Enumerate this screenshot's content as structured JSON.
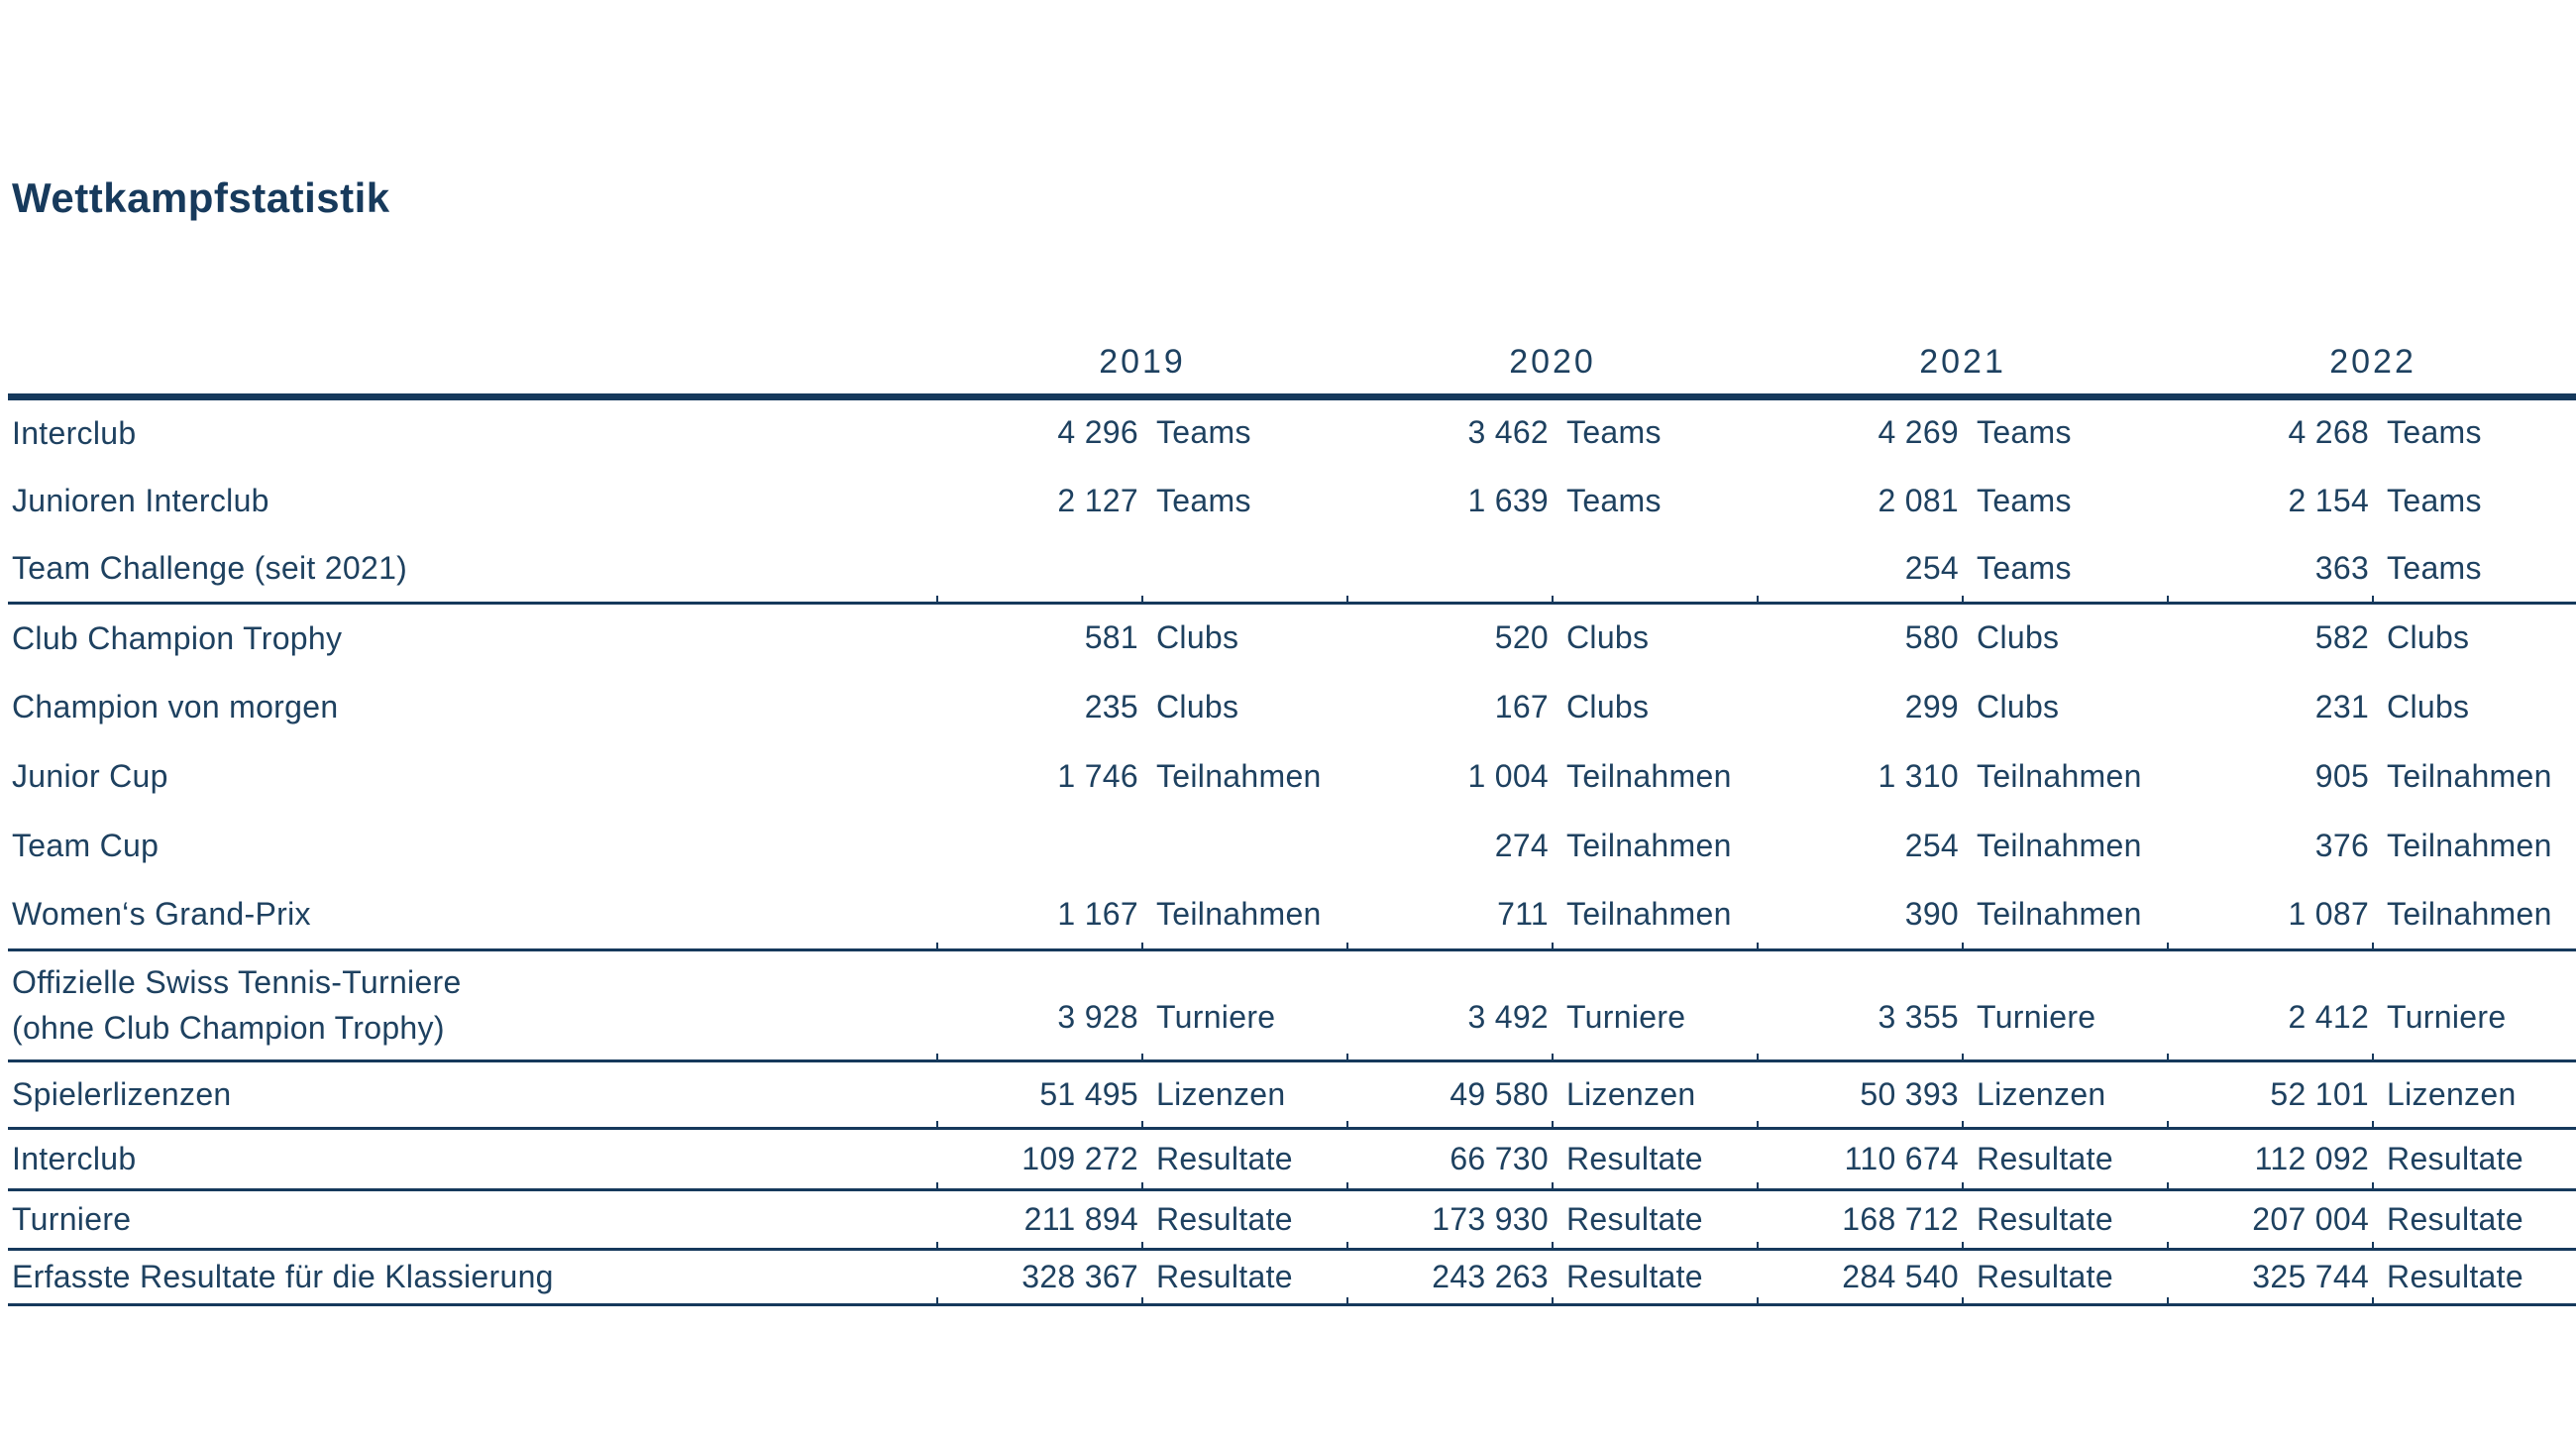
{
  "page": {
    "title": "Wettkampfstatistik"
  },
  "colors": {
    "navy_rule": "#16395c",
    "text": "#1e4160",
    "background": "#ffffff"
  },
  "table": {
    "years": [
      "2019",
      "2020",
      "2021",
      "2022"
    ],
    "rows": [
      {
        "label": "Interclub",
        "label2": "",
        "values": [
          {
            "num": "4 296",
            "unit": "Teams"
          },
          {
            "num": "3 462",
            "unit": "Teams"
          },
          {
            "num": "4 269",
            "unit": "Teams"
          },
          {
            "num": "4 268",
            "unit": "Teams"
          }
        ]
      },
      {
        "label": "Junioren Interclub",
        "label2": "",
        "values": [
          {
            "num": "2 127",
            "unit": "Teams"
          },
          {
            "num": "1 639",
            "unit": "Teams"
          },
          {
            "num": "2 081",
            "unit": "Teams"
          },
          {
            "num": "2 154",
            "unit": "Teams"
          }
        ]
      },
      {
        "label": "Team Challenge (seit 2021)",
        "label2": "",
        "values": [
          {
            "num": "",
            "unit": ""
          },
          {
            "num": "",
            "unit": ""
          },
          {
            "num": "254",
            "unit": "Teams"
          },
          {
            "num": "363",
            "unit": "Teams"
          }
        ]
      },
      {
        "label": "Club Champion Trophy",
        "label2": "",
        "values": [
          {
            "num": "581",
            "unit": "Clubs"
          },
          {
            "num": "520",
            "unit": "Clubs"
          },
          {
            "num": "580",
            "unit": "Clubs"
          },
          {
            "num": "582",
            "unit": "Clubs"
          }
        ]
      },
      {
        "label": "Champion von morgen",
        "label2": "",
        "values": [
          {
            "num": "235",
            "unit": "Clubs"
          },
          {
            "num": "167",
            "unit": "Clubs"
          },
          {
            "num": "299",
            "unit": "Clubs"
          },
          {
            "num": "231",
            "unit": "Clubs"
          }
        ]
      },
      {
        "label": "Junior Cup",
        "label2": "",
        "values": [
          {
            "num": "1 746",
            "unit": "Teilnahmen"
          },
          {
            "num": "1 004",
            "unit": "Teilnahmen"
          },
          {
            "num": "1 310",
            "unit": "Teilnahmen"
          },
          {
            "num": "905",
            "unit": "Teilnahmen"
          }
        ]
      },
      {
        "label": "Team Cup",
        "label2": "",
        "values": [
          {
            "num": "",
            "unit": ""
          },
          {
            "num": "274",
            "unit": "Teilnahmen"
          },
          {
            "num": "254",
            "unit": "Teilnahmen"
          },
          {
            "num": "376",
            "unit": "Teilnahmen"
          }
        ]
      },
      {
        "label": "Women‘s Grand-Prix",
        "label2": "",
        "values": [
          {
            "num": "1 167",
            "unit": "Teilnahmen"
          },
          {
            "num": "711",
            "unit": "Teilnahmen"
          },
          {
            "num": "390",
            "unit": "Teilnahmen"
          },
          {
            "num": "1 087",
            "unit": "Teilnahmen"
          }
        ]
      },
      {
        "label": "Offizielle Swiss Tennis-Turniere",
        "label2": "(ohne Club Champion Trophy)",
        "values": [
          {
            "num": "3 928",
            "unit": "Turniere"
          },
          {
            "num": "3 492",
            "unit": "Turniere"
          },
          {
            "num": "3 355",
            "unit": "Turniere"
          },
          {
            "num": "2 412",
            "unit": "Turniere"
          }
        ]
      },
      {
        "label": "Spielerlizenzen",
        "label2": "",
        "values": [
          {
            "num": "51 495",
            "unit": "Lizenzen"
          },
          {
            "num": "49 580",
            "unit": "Lizenzen"
          },
          {
            "num": "50 393",
            "unit": "Lizenzen"
          },
          {
            "num": "52 101",
            "unit": "Lizenzen"
          }
        ]
      },
      {
        "label": "Interclub",
        "label2": "",
        "values": [
          {
            "num": "109 272",
            "unit": "Resultate"
          },
          {
            "num": "66 730",
            "unit": "Resultate"
          },
          {
            "num": "110 674",
            "unit": "Resultate"
          },
          {
            "num": "112 092",
            "unit": "Resultate"
          }
        ]
      },
      {
        "label": "Turniere",
        "label2": "",
        "values": [
          {
            "num": "211 894",
            "unit": "Resultate"
          },
          {
            "num": "173 930",
            "unit": "Resultate"
          },
          {
            "num": "168 712",
            "unit": "Resultate"
          },
          {
            "num": "207 004",
            "unit": "Resultate"
          }
        ]
      },
      {
        "label": "Erfasste Resultate für die Klassierung",
        "label2": "",
        "values": [
          {
            "num": "328 367",
            "unit": "Resultate"
          },
          {
            "num": "243 263",
            "unit": "Resultate"
          },
          {
            "num": "284 540",
            "unit": "Resultate"
          },
          {
            "num": "325 744",
            "unit": "Resultate"
          }
        ]
      }
    ]
  }
}
